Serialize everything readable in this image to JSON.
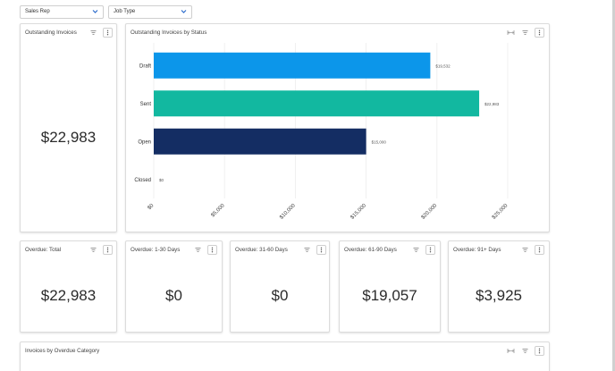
{
  "filters": [
    {
      "label": "Sales Rep"
    },
    {
      "label": "Job Type"
    }
  ],
  "cards": {
    "outstanding": {
      "title": "Outstanding Invoices",
      "value": "$22,983"
    },
    "by_status": {
      "title": "Outstanding Invoices by Status"
    },
    "overdue_total": {
      "title": "Overdue: Total",
      "value": "$22,983"
    },
    "overdue_1_30": {
      "title": "Overdue: 1-30 Days",
      "value": "$0"
    },
    "overdue_31_60": {
      "title": "Overdue: 31-60 Days",
      "value": "$0"
    },
    "overdue_61_90": {
      "title": "Overdue: 61-90 Days",
      "value": "$19,057"
    },
    "overdue_91": {
      "title": "Overdue: 91+ Days",
      "value": "$3,925"
    },
    "by_category": {
      "title": "Invoices by Overdue Category"
    }
  },
  "icons": {
    "filter": "filter-icon",
    "menu": "more-vertical-icon",
    "expand": "expand-horizontal-icon",
    "dropdown": "chevron-down-icon"
  },
  "colors": {
    "draft": "#0c96ea",
    "sent": "#12b8a0",
    "open": "#142d63",
    "chevron": "#2d6dcc"
  },
  "chart_data": {
    "type": "bar",
    "orientation": "horizontal",
    "categories": [
      "Draft",
      "Sent",
      "Open",
      "Closed"
    ],
    "values": [
      19532,
      22983,
      15000,
      0
    ],
    "data_labels": [
      "$19,532",
      "$22,983",
      "$15,000",
      "$0"
    ],
    "colors": [
      "#0c96ea",
      "#12b8a0",
      "#142d63",
      "#0c96ea"
    ],
    "xlim": [
      0,
      25000
    ],
    "xticks": [
      0,
      5000,
      10000,
      15000,
      20000,
      25000
    ],
    "xtick_labels": [
      "$0",
      "$5,000",
      "$10,000",
      "$15,000",
      "$20,000",
      "$25,000"
    ],
    "grid": true,
    "legend": "none"
  }
}
